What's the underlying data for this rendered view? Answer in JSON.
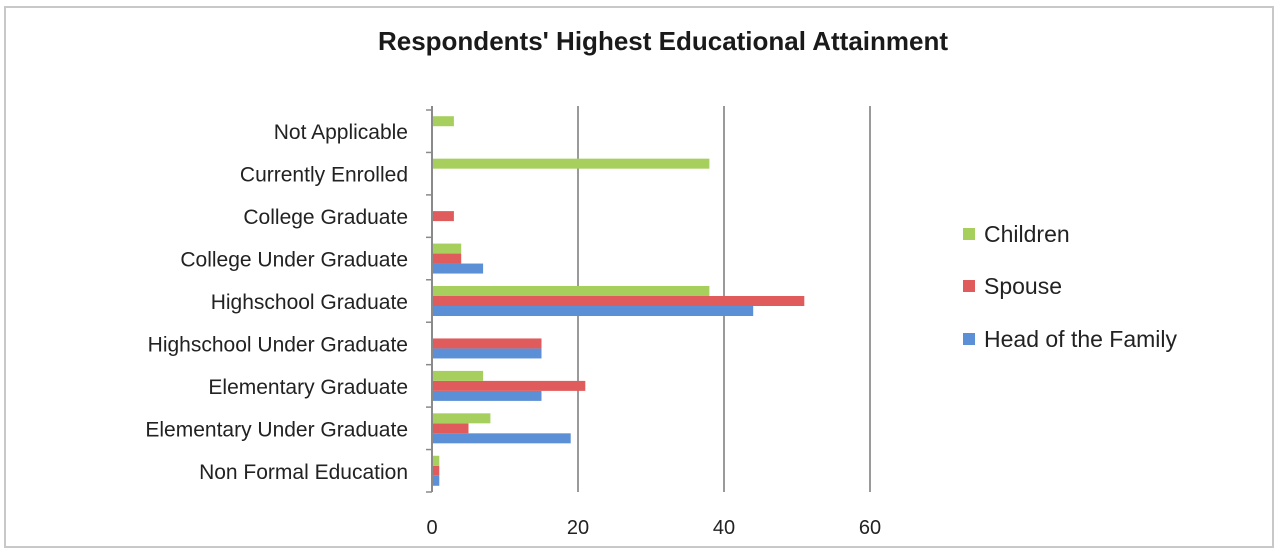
{
  "chart_data": {
    "type": "bar",
    "orientation": "horizontal",
    "title": "Respondents' Highest Educational Attainment",
    "xlabel": "",
    "ylabel": "",
    "xlim": [
      0,
      60
    ],
    "xticks": [
      0,
      20,
      40,
      60
    ],
    "grid": true,
    "legend_position": "right",
    "categories": [
      "Non Formal Education",
      "Elementary Under Graduate",
      "Elementary  Graduate",
      "Highschool Under Graduate",
      "Highschool Graduate",
      "College Under Graduate",
      "College Graduate",
      "Currently Enrolled",
      "Not Applicable"
    ],
    "series": [
      {
        "name": "Head of the Family",
        "color": "#5b8fd6",
        "values": [
          1,
          19,
          15,
          15,
          44,
          7,
          0,
          0,
          0
        ]
      },
      {
        "name": "Spouse",
        "color": "#e05b5b",
        "values": [
          1,
          5,
          21,
          15,
          51,
          4,
          3,
          0,
          0
        ]
      },
      {
        "name": "Children",
        "color": "#a6cf5e",
        "values": [
          1,
          8,
          7,
          0,
          38,
          4,
          0,
          38,
          3
        ]
      }
    ],
    "legend_order": [
      "Children",
      "Spouse",
      "Head of the Family"
    ]
  }
}
